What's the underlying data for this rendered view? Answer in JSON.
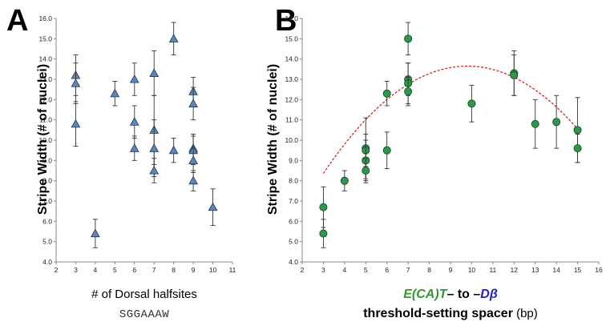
{
  "chart_data": [
    {
      "panel": "A",
      "type": "scatter",
      "ylabel": "Stripe Width  (# of nuclei)",
      "xlabel": "# of Dorsal halfsites",
      "xlabel_sub": "SGGAAAW",
      "xlim": [
        2,
        11
      ],
      "ylim": [
        4.0,
        16.0
      ],
      "xticks": [
        2,
        3,
        4,
        5,
        6,
        7,
        8,
        9,
        10,
        11
      ],
      "yticks": [
        4.0,
        5.0,
        6.0,
        7.0,
        8.0,
        9.0,
        10.0,
        11.0,
        12.0,
        13.0,
        14.0,
        15.0,
        16.0
      ],
      "marker": "triangle",
      "marker_color": "#5b86b8",
      "points": [
        {
          "x": 3,
          "y": 13.2,
          "err": 1.0
        },
        {
          "x": 3,
          "y": 12.8,
          "err": 1.0
        },
        {
          "x": 3,
          "y": 10.8,
          "err": 1.1
        },
        {
          "x": 4,
          "y": 5.4,
          "err": 0.7
        },
        {
          "x": 5,
          "y": 12.3,
          "err": 0.6
        },
        {
          "x": 6,
          "y": 13.0,
          "err": 0.8
        },
        {
          "x": 6,
          "y": 10.9,
          "err": 0.8
        },
        {
          "x": 6,
          "y": 9.6,
          "err": 0.6
        },
        {
          "x": 7,
          "y": 13.3,
          "err": 1.1
        },
        {
          "x": 7,
          "y": 10.5,
          "err": 1.7
        },
        {
          "x": 7,
          "y": 9.6,
          "err": 1.4
        },
        {
          "x": 7,
          "y": 8.5,
          "err": 0.6
        },
        {
          "x": 8,
          "y": 15.0,
          "err": 0.8
        },
        {
          "x": 8,
          "y": 9.5,
          "err": 0.6
        },
        {
          "x": 9,
          "y": 12.4,
          "err": 0.7
        },
        {
          "x": 9,
          "y": 11.8,
          "err": 0.8
        },
        {
          "x": 9,
          "y": 9.6,
          "err": 0.7
        },
        {
          "x": 9,
          "y": 9.5,
          "err": 0.7
        },
        {
          "x": 9,
          "y": 9.0,
          "err": 0.6
        },
        {
          "x": 9,
          "y": 8.0,
          "err": 0.5
        },
        {
          "x": 10,
          "y": 6.7,
          "err": 0.9
        }
      ]
    },
    {
      "panel": "B",
      "type": "scatter",
      "ylabel": "Stripe Width  (# of nuclei)",
      "xlabel_parts": [
        {
          "text": "E(CA)T",
          "color": "#2e9a2e",
          "italic": true
        },
        {
          "text": "– to –",
          "color": "#000000",
          "italic": false
        },
        {
          "text": "Dβ",
          "color": "#2020c8",
          "italic": true
        }
      ],
      "xlabel_line2_bold": "threshold-setting spacer",
      "xlabel_line2_unit": " (bp)",
      "xlim": [
        2,
        16
      ],
      "ylim": [
        4.0,
        16.0
      ],
      "xticks": [
        2,
        3,
        4,
        5,
        6,
        7,
        8,
        9,
        10,
        11,
        12,
        13,
        14,
        15,
        16
      ],
      "yticks": [
        4.0,
        5.0,
        6.0,
        7.0,
        8.0,
        9.0,
        10.0,
        11.0,
        12.0,
        13.0,
        14.0,
        15.0,
        16.0
      ],
      "marker": "circle",
      "marker_color": "#2a9a4a",
      "fit_color": "#e02020",
      "fit": {
        "type": "quadratic",
        "vertex_x": 9.8,
        "vertex_y": 13.65,
        "a": -0.1144,
        "xrange": [
          3,
          15
        ]
      },
      "points": [
        {
          "x": 3,
          "y": 6.7,
          "err": 1.0
        },
        {
          "x": 3,
          "y": 5.4,
          "err": 0.7
        },
        {
          "x": 4,
          "y": 8.0,
          "err": 0.5
        },
        {
          "x": 5,
          "y": 9.6,
          "err": 1.5
        },
        {
          "x": 5,
          "y": 9.5,
          "err": 0.8
        },
        {
          "x": 5,
          "y": 9.0,
          "err": 1.0
        },
        {
          "x": 5,
          "y": 8.5,
          "err": 0.6
        },
        {
          "x": 6,
          "y": 12.3,
          "err": 0.6
        },
        {
          "x": 6,
          "y": 9.5,
          "err": 0.9
        },
        {
          "x": 7,
          "y": 15.0,
          "err": 0.8
        },
        {
          "x": 7,
          "y": 13.0,
          "err": 0.8
        },
        {
          "x": 7,
          "y": 12.8,
          "err": 1.0
        },
        {
          "x": 7,
          "y": 12.4,
          "err": 0.7
        },
        {
          "x": 10,
          "y": 11.8,
          "err": 0.9
        },
        {
          "x": 12,
          "y": 13.3,
          "err": 1.1
        },
        {
          "x": 12,
          "y": 13.2,
          "err": 1.0
        },
        {
          "x": 13,
          "y": 10.8,
          "err": 1.2
        },
        {
          "x": 14,
          "y": 10.9,
          "err": 1.3
        },
        {
          "x": 15,
          "y": 10.5,
          "err": 1.6
        },
        {
          "x": 15,
          "y": 9.6,
          "err": 0.7
        }
      ]
    }
  ],
  "panels": {
    "a": {
      "letter": "A"
    },
    "b": {
      "letter": "B"
    }
  }
}
